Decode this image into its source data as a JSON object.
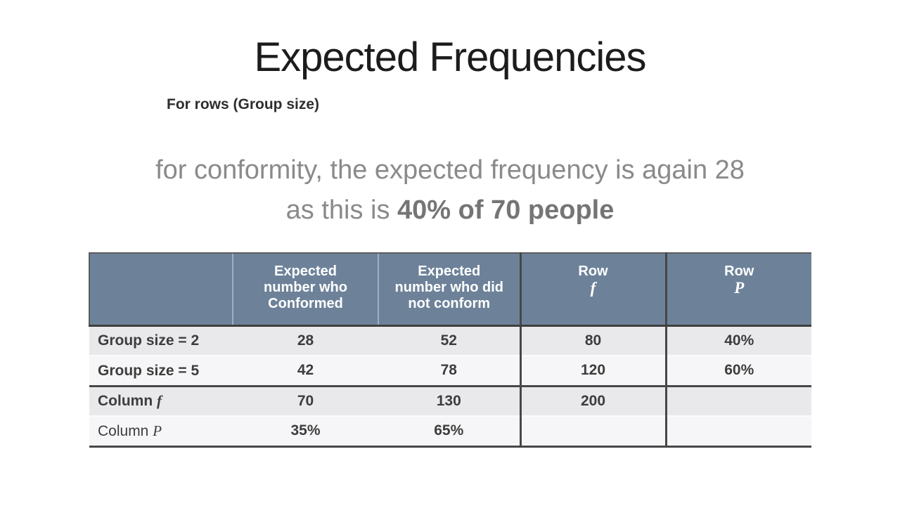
{
  "colors": {
    "background": "#ffffff",
    "header_bg": "#6d8299",
    "header_text": "#ffffff",
    "row_shaded": "#e9e9ec",
    "row_plain": "#f6f6f8",
    "border_dark": "#474747",
    "header_separator": "#9cb0c1",
    "body_text": "#3d3d3d",
    "caption_gray": "#8a8a8a",
    "title_color": "#1c1c1c"
  },
  "slide": {
    "title": "Expected Frequencies",
    "subtitle": "For rows (Group size)",
    "caption_line1": "for conformity, the expected frequency is again 28",
    "caption_line2_regular": "as this is ",
    "caption_line2_bold": "40% of 70 people"
  },
  "table": {
    "columns": [
      {
        "label": ""
      },
      {
        "l1": "Expected",
        "l2": "number who",
        "l3": "Conformed"
      },
      {
        "l1": "Expected",
        "l2": "number who did",
        "l3": "not conform"
      },
      {
        "l1": "Row",
        "l2": "f"
      },
      {
        "l1": "Row",
        "l2": "P"
      }
    ],
    "rows": [
      {
        "label_prefix": "Group size = 2",
        "label_italic": "",
        "c1": "28",
        "c2": "52",
        "c3": "80",
        "c4": "40%"
      },
      {
        "label_prefix": "Group size = 5",
        "label_italic": "",
        "c1": "42",
        "c2": "78",
        "c3": "120",
        "c4": "60%"
      },
      {
        "label_prefix": "Column ",
        "label_italic": "f",
        "c1": "70",
        "c2": "130",
        "c3": "200",
        "c4": ""
      },
      {
        "label_prefix": "Column ",
        "label_italic": "P",
        "c1": "35%",
        "c2": "65%",
        "c3": "",
        "c4": ""
      }
    ]
  },
  "chart_data": {
    "type": "table",
    "columns": [
      "",
      "Expected number who Conformed",
      "Expected number who did not conform",
      "Row f",
      "Row P"
    ],
    "rows": [
      [
        "Group size = 2",
        "28",
        "52",
        "80",
        "40%"
      ],
      [
        "Group size = 5",
        "42",
        "78",
        "120",
        "60%"
      ],
      [
        "Column f",
        "70",
        "130",
        "200",
        ""
      ],
      [
        "Column P",
        "35%",
        "65%",
        "",
        ""
      ]
    ]
  }
}
